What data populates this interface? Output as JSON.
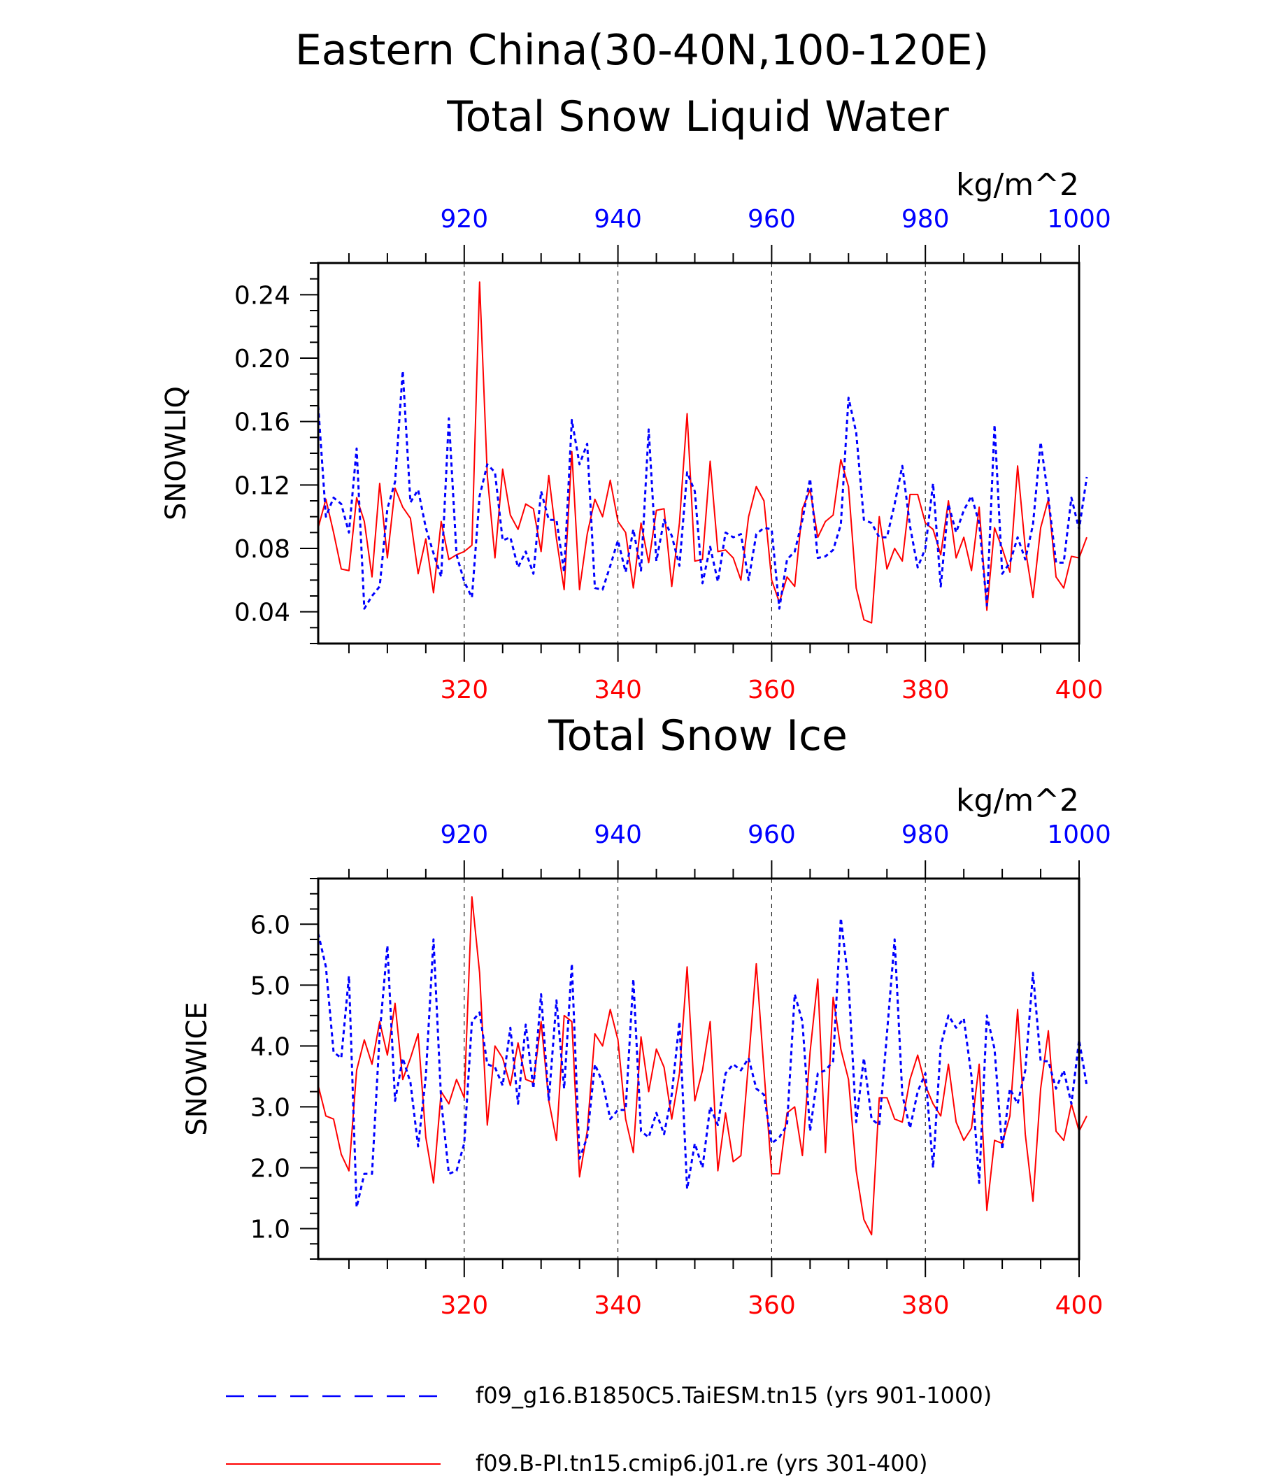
{
  "figure": {
    "title_line1": "Eastern China(30-40N,100-120E)",
    "title_line2": "Total Snow Liquid Water",
    "panel2_title": "Total Snow Ice",
    "colors": {
      "series_red": "#ff0000",
      "series_blue": "#0000ff",
      "axis": "#000000"
    }
  },
  "legend": [
    {
      "label": "f09_g16.B1850C5.TaiESM.tn15 (yrs 901-1000)",
      "color": "#0000ff",
      "style": "dashed"
    },
    {
      "label": "f09.B-PI.tn15.cmip6.j01.re (yrs 301-400)",
      "color": "#ff0000",
      "style": "solid"
    }
  ],
  "chart_data": [
    {
      "type": "line",
      "title": "Total Snow Liquid Water",
      "units": "kg/m^2",
      "ylabel": "SNOWLIQ",
      "ylim": [
        0.02,
        0.26
      ],
      "yticks": [
        "0.04",
        "0.08",
        "0.12",
        "0.16",
        "0.20",
        "0.24"
      ],
      "yticks_values": [
        0.04,
        0.08,
        0.12,
        0.16,
        0.2,
        0.24
      ],
      "x_bottom": {
        "range": [
          301,
          400
        ],
        "ticks": [
          "320",
          "340",
          "360",
          "380",
          "400"
        ],
        "tick_values": [
          320,
          340,
          360,
          380,
          400
        ]
      },
      "x_top": {
        "range": [
          901,
          1000
        ],
        "ticks": [
          "920",
          "940",
          "960",
          "980",
          "1000"
        ],
        "tick_values": [
          920,
          940,
          960,
          980,
          1000
        ]
      },
      "grid": "dashed vertical lines at 320, 340, 360, 380",
      "series": [
        {
          "axis": "bottom",
          "color": "#ff0000",
          "style": "solid",
          "values": [
            0.093,
            0.111,
            0.09,
            0.067,
            0.066,
            0.112,
            0.097,
            0.062,
            0.121,
            0.074,
            0.118,
            0.106,
            0.099,
            0.064,
            0.086,
            0.052,
            0.097,
            0.073,
            0.076,
            0.078,
            0.082,
            0.248,
            0.126,
            0.074,
            0.13,
            0.101,
            0.092,
            0.108,
            0.105,
            0.078,
            0.126,
            0.086,
            0.054,
            0.141,
            0.054,
            0.089,
            0.111,
            0.1,
            0.123,
            0.097,
            0.09,
            0.055,
            0.096,
            0.071,
            0.104,
            0.105,
            0.056,
            0.096,
            0.165,
            0.072,
            0.073,
            0.135,
            0.078,
            0.079,
            0.074,
            0.06,
            0.1,
            0.119,
            0.11,
            0.06,
            0.046,
            0.062,
            0.056,
            0.105,
            0.117,
            0.087,
            0.097,
            0.101,
            0.136,
            0.119,
            0.055,
            0.035,
            0.033,
            0.1,
            0.067,
            0.08,
            0.072,
            0.114,
            0.114,
            0.096,
            0.092,
            0.076,
            0.11,
            0.074,
            0.087,
            0.066,
            0.106,
            0.041,
            0.093,
            0.08,
            0.065,
            0.132,
            0.08,
            0.049,
            0.093,
            0.111,
            0.062,
            0.055,
            0.075,
            0.074,
            0.087
          ]
        },
        {
          "axis": "top",
          "color": "#0000ff",
          "style": "dashed",
          "values": [
            0.17,
            0.1,
            0.112,
            0.108,
            0.09,
            0.143,
            0.042,
            0.05,
            0.056,
            0.105,
            0.122,
            0.192,
            0.109,
            0.117,
            0.093,
            0.077,
            0.062,
            0.162,
            0.076,
            0.059,
            0.049,
            0.113,
            0.133,
            0.128,
            0.085,
            0.087,
            0.068,
            0.078,
            0.064,
            0.116,
            0.098,
            0.098,
            0.065,
            0.161,
            0.133,
            0.146,
            0.055,
            0.054,
            0.069,
            0.085,
            0.065,
            0.092,
            0.066,
            0.155,
            0.072,
            0.098,
            0.088,
            0.069,
            0.128,
            0.116,
            0.058,
            0.081,
            0.059,
            0.09,
            0.087,
            0.089,
            0.06,
            0.089,
            0.093,
            0.092,
            0.042,
            0.073,
            0.078,
            0.098,
            0.124,
            0.074,
            0.075,
            0.079,
            0.095,
            0.175,
            0.153,
            0.098,
            0.096,
            0.087,
            0.087,
            0.108,
            0.132,
            0.094,
            0.068,
            0.08,
            0.121,
            0.056,
            0.108,
            0.09,
            0.104,
            0.113,
            0.096,
            0.044,
            0.158,
            0.064,
            0.071,
            0.087,
            0.073,
            0.095,
            0.147,
            0.112,
            0.071,
            0.071,
            0.112,
            0.092,
            0.125
          ]
        }
      ]
    },
    {
      "type": "line",
      "title": "Total Snow Ice",
      "units": "kg/m^2",
      "ylabel": "SNOWICE",
      "ylim": [
        0.5,
        6.75
      ],
      "yticks": [
        "1.0",
        "2.0",
        "3.0",
        "4.0",
        "5.0",
        "6.0"
      ],
      "yticks_values": [
        1.0,
        2.0,
        3.0,
        4.0,
        5.0,
        6.0
      ],
      "x_bottom": {
        "range": [
          301,
          400
        ],
        "ticks": [
          "320",
          "340",
          "360",
          "380",
          "400"
        ],
        "tick_values": [
          320,
          340,
          360,
          380,
          400
        ]
      },
      "x_top": {
        "range": [
          901,
          1000
        ],
        "ticks": [
          "920",
          "940",
          "960",
          "980",
          "1000"
        ],
        "tick_values": [
          920,
          940,
          960,
          980,
          1000
        ]
      },
      "grid": "dashed vertical lines at 320, 340, 360, 380",
      "series": [
        {
          "axis": "bottom",
          "color": "#ff0000",
          "style": "solid",
          "values": [
            3.35,
            2.85,
            2.8,
            2.22,
            1.95,
            3.6,
            4.1,
            3.7,
            4.4,
            3.85,
            4.7,
            3.45,
            3.8,
            4.2,
            2.5,
            1.75,
            3.25,
            3.05,
            3.45,
            3.15,
            6.45,
            5.2,
            2.7,
            4.0,
            3.8,
            3.35,
            4.05,
            3.45,
            3.4,
            4.4,
            3.1,
            2.45,
            4.5,
            4.4,
            1.85,
            2.6,
            4.2,
            4.0,
            4.6,
            4.1,
            2.8,
            2.25,
            4.15,
            3.25,
            3.95,
            3.65,
            2.8,
            3.55,
            5.3,
            3.1,
            3.6,
            4.4,
            1.95,
            2.9,
            2.1,
            2.2,
            3.75,
            5.35,
            3.6,
            1.9,
            1.9,
            2.9,
            3.0,
            2.2,
            3.9,
            5.1,
            2.25,
            4.8,
            3.95,
            3.45,
            1.95,
            1.15,
            0.9,
            3.15,
            3.15,
            2.8,
            2.75,
            3.45,
            3.85,
            3.35,
            3.05,
            2.85,
            3.7,
            2.75,
            2.45,
            2.65,
            3.7,
            1.3,
            2.45,
            2.4,
            2.85,
            4.6,
            2.55,
            1.45,
            3.3,
            4.25,
            2.6,
            2.45,
            3.05,
            2.6,
            2.85
          ]
        },
        {
          "axis": "top",
          "color": "#0000ff",
          "style": "dashed",
          "values": [
            5.85,
            5.3,
            3.9,
            3.8,
            5.15,
            1.35,
            1.9,
            1.9,
            4.2,
            5.65,
            3.1,
            3.8,
            3.4,
            2.35,
            3.5,
            5.75,
            3.1,
            1.9,
            1.95,
            2.4,
            4.4,
            4.55,
            3.7,
            3.65,
            3.35,
            4.3,
            3.05,
            4.35,
            3.3,
            4.85,
            3.1,
            4.75,
            3.3,
            5.35,
            2.15,
            2.5,
            3.7,
            3.4,
            2.8,
            2.95,
            2.95,
            5.1,
            2.6,
            2.5,
            2.9,
            2.55,
            3.2,
            4.4,
            1.65,
            2.4,
            2.0,
            3.0,
            2.7,
            3.55,
            3.7,
            3.6,
            3.8,
            3.3,
            3.2,
            2.4,
            2.5,
            2.7,
            4.85,
            4.4,
            2.6,
            3.55,
            3.6,
            3.75,
            6.1,
            5.05,
            2.75,
            3.8,
            2.8,
            2.7,
            4.2,
            5.75,
            3.2,
            2.65,
            3.25,
            3.55,
            2.0,
            4.0,
            4.5,
            4.3,
            4.45,
            3.5,
            1.75,
            4.5,
            3.95,
            2.3,
            3.3,
            3.05,
            3.6,
            5.2,
            3.75,
            3.75,
            3.3,
            3.6,
            3.05,
            4.1,
            3.35
          ]
        }
      ]
    }
  ]
}
